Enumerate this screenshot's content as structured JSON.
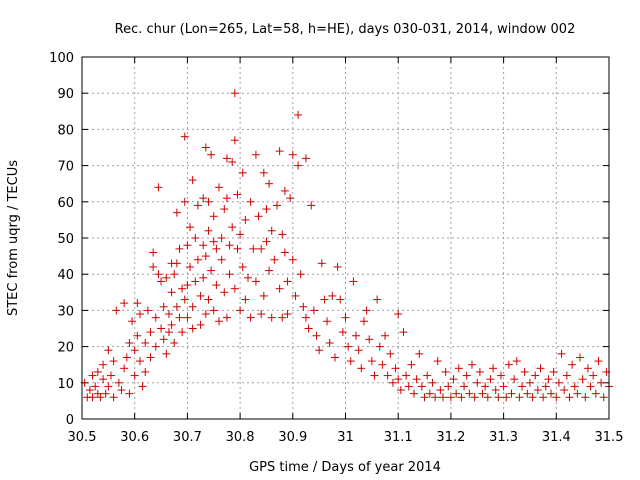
{
  "chart_data": {
    "type": "scatter",
    "title": "Rec. chur (Lon=265, Lat=58, h=HE), days 030-031, 2014, window 002",
    "xlabel": "GPS time / Days of year 2014",
    "ylabel": "STEC from uqrg / TECUs",
    "xlim": [
      30.5,
      31.5
    ],
    "ylim": [
      0,
      100
    ],
    "xticks": [
      "30.5",
      "30.6",
      "30.7",
      "30.8",
      "30.9",
      "31",
      "31.1",
      "31.2",
      "31.3",
      "31.4",
      "31.5"
    ],
    "yticks": [
      "0",
      "10",
      "20",
      "30",
      "40",
      "50",
      "60",
      "70",
      "80",
      "90",
      "100"
    ],
    "grid": true,
    "marker": "plus",
    "color": "#d00000",
    "points": [
      [
        30.505,
        10
      ],
      [
        30.51,
        6
      ],
      [
        30.515,
        8
      ],
      [
        30.52,
        12
      ],
      [
        30.52,
        6
      ],
      [
        30.525,
        9
      ],
      [
        30.53,
        13
      ],
      [
        30.53,
        7
      ],
      [
        30.535,
        6
      ],
      [
        30.54,
        11
      ],
      [
        30.54,
        15
      ],
      [
        30.545,
        7
      ],
      [
        30.55,
        19
      ],
      [
        30.55,
        9
      ],
      [
        30.555,
        12
      ],
      [
        30.56,
        6
      ],
      [
        30.56,
        16
      ],
      [
        30.565,
        30
      ],
      [
        30.57,
        10
      ],
      [
        30.575,
        8
      ],
      [
        30.58,
        32
      ],
      [
        30.58,
        14
      ],
      [
        30.585,
        17
      ],
      [
        30.59,
        7
      ],
      [
        30.59,
        21
      ],
      [
        30.595,
        27
      ],
      [
        30.6,
        12
      ],
      [
        30.6,
        19
      ],
      [
        30.605,
        32
      ],
      [
        30.605,
        23
      ],
      [
        30.61,
        29
      ],
      [
        30.61,
        16
      ],
      [
        30.615,
        9
      ],
      [
        30.62,
        21
      ],
      [
        30.62,
        13
      ],
      [
        30.625,
        30
      ],
      [
        30.63,
        24
      ],
      [
        30.63,
        17
      ],
      [
        30.635,
        46
      ],
      [
        30.635,
        42
      ],
      [
        30.64,
        20
      ],
      [
        30.64,
        28
      ],
      [
        30.645,
        64
      ],
      [
        30.645,
        40
      ],
      [
        30.65,
        25
      ],
      [
        30.65,
        38
      ],
      [
        30.655,
        22
      ],
      [
        30.655,
        31
      ],
      [
        30.66,
        39
      ],
      [
        30.66,
        18
      ],
      [
        30.665,
        24
      ],
      [
        30.665,
        29
      ],
      [
        30.67,
        43
      ],
      [
        30.67,
        35
      ],
      [
        30.67,
        26
      ],
      [
        30.675,
        40
      ],
      [
        30.675,
        21
      ],
      [
        30.68,
        57
      ],
      [
        30.68,
        43
      ],
      [
        30.68,
        31
      ],
      [
        30.685,
        47
      ],
      [
        30.685,
        28
      ],
      [
        30.69,
        36
      ],
      [
        30.69,
        24
      ],
      [
        30.695,
        78
      ],
      [
        30.695,
        60
      ],
      [
        30.695,
        33
      ],
      [
        30.7,
        48
      ],
      [
        30.7,
        37
      ],
      [
        30.7,
        28
      ],
      [
        30.705,
        53
      ],
      [
        30.705,
        42
      ],
      [
        30.71,
        66
      ],
      [
        30.71,
        31
      ],
      [
        30.71,
        25
      ],
      [
        30.715,
        50
      ],
      [
        30.715,
        38
      ],
      [
        30.72,
        59
      ],
      [
        30.72,
        44
      ],
      [
        30.725,
        34
      ],
      [
        30.725,
        26
      ],
      [
        30.73,
        61
      ],
      [
        30.73,
        48
      ],
      [
        30.73,
        39
      ],
      [
        30.735,
        75
      ],
      [
        30.735,
        45
      ],
      [
        30.735,
        29
      ],
      [
        30.74,
        60
      ],
      [
        30.74,
        52
      ],
      [
        30.74,
        33
      ],
      [
        30.745,
        73
      ],
      [
        30.745,
        41
      ],
      [
        30.75,
        56
      ],
      [
        30.75,
        49
      ],
      [
        30.75,
        30
      ],
      [
        30.755,
        47
      ],
      [
        30.755,
        37
      ],
      [
        30.76,
        64
      ],
      [
        30.76,
        27
      ],
      [
        30.765,
        50
      ],
      [
        30.765,
        44
      ],
      [
        30.77,
        58
      ],
      [
        30.77,
        35
      ],
      [
        30.775,
        72
      ],
      [
        30.775,
        61
      ],
      [
        30.775,
        28
      ],
      [
        30.78,
        48
      ],
      [
        30.78,
        40
      ],
      [
        30.785,
        71
      ],
      [
        30.785,
        53
      ],
      [
        30.79,
        90
      ],
      [
        30.79,
        77
      ],
      [
        30.79,
        36
      ],
      [
        30.795,
        62
      ],
      [
        30.795,
        47
      ],
      [
        30.8,
        51
      ],
      [
        30.8,
        30
      ],
      [
        30.805,
        68
      ],
      [
        30.805,
        42
      ],
      [
        30.81,
        55
      ],
      [
        30.81,
        33
      ],
      [
        30.815,
        39
      ],
      [
        30.82,
        60
      ],
      [
        30.82,
        28
      ],
      [
        30.825,
        47
      ],
      [
        30.83,
        73
      ],
      [
        30.83,
        38
      ],
      [
        30.835,
        56
      ],
      [
        30.84,
        47
      ],
      [
        30.84,
        29
      ],
      [
        30.845,
        68
      ],
      [
        30.845,
        34
      ],
      [
        30.85,
        58
      ],
      [
        30.85,
        49
      ],
      [
        30.855,
        65
      ],
      [
        30.855,
        41
      ],
      [
        30.86,
        52
      ],
      [
        30.86,
        28
      ],
      [
        30.865,
        44
      ],
      [
        30.87,
        59
      ],
      [
        30.875,
        74
      ],
      [
        30.875,
        36
      ],
      [
        30.88,
        51
      ],
      [
        30.88,
        28
      ],
      [
        30.885,
        63
      ],
      [
        30.885,
        46
      ],
      [
        30.89,
        38
      ],
      [
        30.89,
        29
      ],
      [
        30.895,
        61
      ],
      [
        30.9,
        73
      ],
      [
        30.9,
        44
      ],
      [
        30.905,
        34
      ],
      [
        30.91,
        70
      ],
      [
        30.91,
        84
      ],
      [
        30.915,
        40
      ],
      [
        30.92,
        31
      ],
      [
        30.925,
        72
      ],
      [
        30.925,
        28
      ],
      [
        30.93,
        25
      ],
      [
        30.935,
        59
      ],
      [
        30.94,
        30
      ],
      [
        30.945,
        23
      ],
      [
        30.95,
        19
      ],
      [
        30.955,
        43
      ],
      [
        30.96,
        33
      ],
      [
        30.965,
        27
      ],
      [
        30.97,
        21
      ],
      [
        30.975,
        34
      ],
      [
        30.98,
        17
      ],
      [
        30.985,
        42
      ],
      [
        30.99,
        33
      ],
      [
        30.995,
        24
      ],
      [
        31.0,
        28
      ],
      [
        31.005,
        20
      ],
      [
        31.01,
        16
      ],
      [
        31.015,
        38
      ],
      [
        31.02,
        23
      ],
      [
        31.025,
        19
      ],
      [
        31.03,
        14
      ],
      [
        31.035,
        27
      ],
      [
        31.04,
        30
      ],
      [
        31.045,
        22
      ],
      [
        31.05,
        16
      ],
      [
        31.055,
        12
      ],
      [
        31.06,
        33
      ],
      [
        31.065,
        20
      ],
      [
        31.07,
        15
      ],
      [
        31.075,
        23
      ],
      [
        31.08,
        12
      ],
      [
        31.085,
        18
      ],
      [
        31.09,
        10
      ],
      [
        31.095,
        14
      ],
      [
        31.1,
        29
      ],
      [
        31.1,
        11
      ],
      [
        31.105,
        8
      ],
      [
        31.11,
        24
      ],
      [
        31.115,
        12
      ],
      [
        31.12,
        9
      ],
      [
        31.125,
        15
      ],
      [
        31.13,
        7
      ],
      [
        31.135,
        11
      ],
      [
        31.14,
        18
      ],
      [
        31.145,
        9
      ],
      [
        31.15,
        6
      ],
      [
        31.155,
        12
      ],
      [
        31.16,
        7
      ],
      [
        31.165,
        10
      ],
      [
        31.17,
        6
      ],
      [
        31.175,
        16
      ],
      [
        31.18,
        8
      ],
      [
        31.185,
        6
      ],
      [
        31.19,
        13
      ],
      [
        31.195,
        9
      ],
      [
        31.2,
        6
      ],
      [
        31.205,
        11
      ],
      [
        31.21,
        7
      ],
      [
        31.215,
        14
      ],
      [
        31.22,
        6
      ],
      [
        31.225,
        9
      ],
      [
        31.23,
        12
      ],
      [
        31.235,
        7
      ],
      [
        31.24,
        15
      ],
      [
        31.245,
        6
      ],
      [
        31.25,
        10
      ],
      [
        31.255,
        13
      ],
      [
        31.26,
        7
      ],
      [
        31.265,
        9
      ],
      [
        31.27,
        6
      ],
      [
        31.275,
        11
      ],
      [
        31.28,
        14
      ],
      [
        31.285,
        8
      ],
      [
        31.29,
        6
      ],
      [
        31.295,
        12
      ],
      [
        31.3,
        9
      ],
      [
        31.305,
        6
      ],
      [
        31.31,
        15
      ],
      [
        31.315,
        7
      ],
      [
        31.32,
        11
      ],
      [
        31.325,
        16
      ],
      [
        31.33,
        6
      ],
      [
        31.335,
        9
      ],
      [
        31.34,
        13
      ],
      [
        31.345,
        7
      ],
      [
        31.35,
        10
      ],
      [
        31.355,
        6
      ],
      [
        31.36,
        12
      ],
      [
        31.365,
        8
      ],
      [
        31.37,
        14
      ],
      [
        31.375,
        6
      ],
      [
        31.38,
        9
      ],
      [
        31.385,
        11
      ],
      [
        31.39,
        7
      ],
      [
        31.395,
        13
      ],
      [
        31.4,
        6
      ],
      [
        31.405,
        10
      ],
      [
        31.41,
        18
      ],
      [
        31.415,
        8
      ],
      [
        31.42,
        12
      ],
      [
        31.425,
        6
      ],
      [
        31.43,
        15
      ],
      [
        31.435,
        9
      ],
      [
        31.44,
        7
      ],
      [
        31.445,
        17
      ],
      [
        31.45,
        11
      ],
      [
        31.455,
        6
      ],
      [
        31.46,
        14
      ],
      [
        31.465,
        9
      ],
      [
        31.47,
        12
      ],
      [
        31.475,
        7
      ],
      [
        31.48,
        16
      ],
      [
        31.485,
        10
      ],
      [
        31.49,
        6
      ],
      [
        31.495,
        13
      ],
      [
        31.5,
        9
      ]
    ]
  }
}
